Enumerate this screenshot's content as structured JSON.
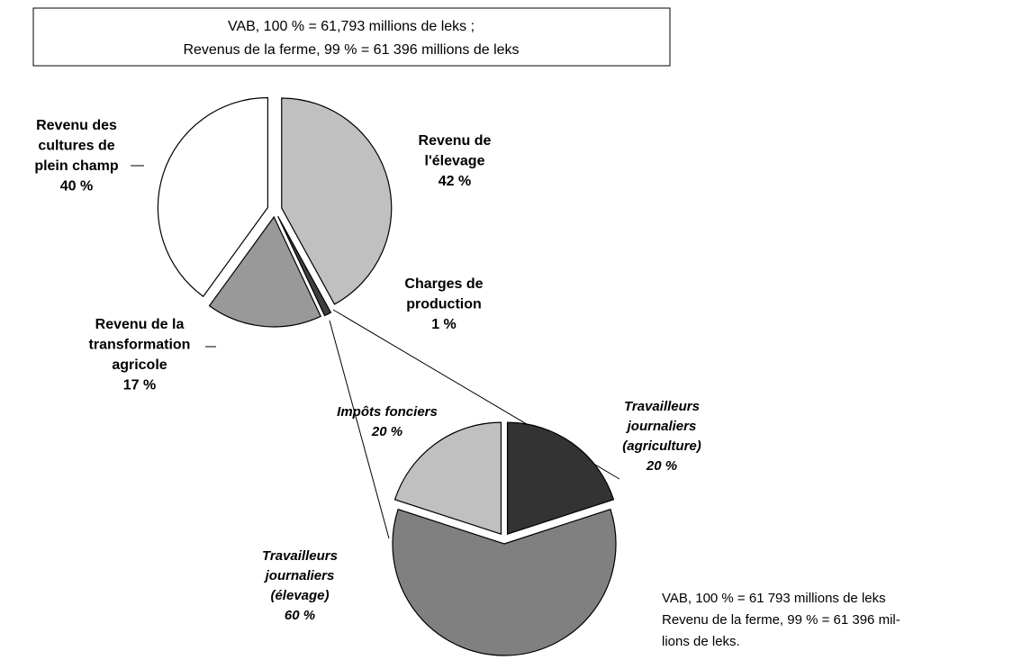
{
  "header": [
    "VAB, 100 % = 61,793 millions de leks ;",
    "Revenus de la ferme, 99 % = 61 396 millions de leks"
  ],
  "chart_data": [
    {
      "type": "pie",
      "categories": [
        "Revenu de l'élevage",
        "Charges de production",
        "Revenu de la transformation agricole",
        "Revenu des cultures de plein champ"
      ],
      "values": [
        42,
        1,
        17,
        40
      ],
      "value_labels": [
        "42 %",
        "1 %",
        "17 %",
        "40 %"
      ],
      "colors": [
        "#c0c0c0",
        "#404040",
        "#999999",
        "#ffffff"
      ]
    },
    {
      "type": "pie",
      "categories": [
        "Travailleurs journaliers (agriculture)",
        "Travailleurs journaliers (élevage)",
        "Impôts fonciers"
      ],
      "values": [
        20,
        60,
        20
      ],
      "value_labels": [
        "20 %",
        "60 %",
        "20 %"
      ],
      "colors": [
        "#333333",
        "#808080",
        "#c0c0c0"
      ]
    }
  ],
  "footnote": [
    "VAB, 100 % = 61 793 millions de leks",
    "Revenu de la ferme, 99 % = 61 396 mil-",
    "lions de leks."
  ]
}
